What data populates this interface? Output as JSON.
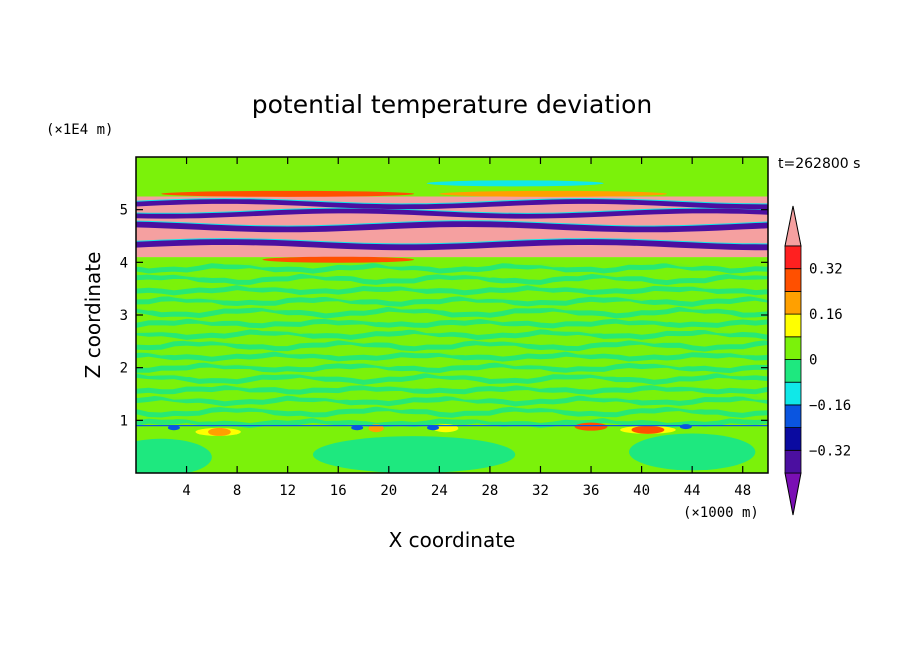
{
  "chart_data": {
    "type": "heatmap",
    "title": "potential temperature deviation",
    "xlabel": "X coordinate",
    "ylabel": "Z coordinate",
    "x_unit": "(×1000 m)",
    "y_unit": "(×1E4 m)",
    "time_label": "t=262800 s",
    "xlim": [
      0,
      50
    ],
    "ylim": [
      0,
      6
    ],
    "x_ticks": [
      4,
      8,
      12,
      16,
      20,
      24,
      28,
      32,
      36,
      40,
      44,
      48
    ],
    "y_ticks": [
      1,
      2,
      3,
      4,
      5
    ],
    "colorbar": {
      "levels": [
        -0.4,
        -0.32,
        -0.24,
        -0.16,
        -0.08,
        0,
        0.08,
        0.16,
        0.24,
        0.32,
        0.4
      ],
      "labeled_levels": [
        0.32,
        0.16,
        0,
        -0.16,
        -0.32
      ],
      "colors": [
        "#7a0fb4",
        "#4b0fa0",
        "#0a0aa0",
        "#0a55e0",
        "#10e8e8",
        "#1ee87f",
        "#7bf20a",
        "#ffff00",
        "#ffa000",
        "#ff5000",
        "#ff2020",
        "#f5a0a0"
      ],
      "extend": "both"
    },
    "fields": [
      {
        "z_range": [
          0,
          0.9
        ],
        "x_range": [
          0,
          50
        ],
        "value": 0.0
      },
      {
        "z_range": [
          0.9,
          4.1
        ],
        "x_range": [
          0,
          50
        ],
        "value": 0.04
      },
      {
        "z_range": [
          4.1,
          5.25
        ],
        "x_range": [
          0,
          50
        ],
        "value": 0.44
      },
      {
        "z_range": [
          5.25,
          6.0
        ],
        "x_range": [
          0,
          50
        ],
        "value": 0.04
      }
    ],
    "bands": [
      {
        "value": -0.4,
        "x": [
          0,
          50
        ],
        "z": [
          4.28,
          4.4
        ]
      },
      {
        "value": -0.4,
        "x": [
          0,
          50
        ],
        "z": [
          4.62,
          4.74
        ]
      },
      {
        "value": -0.4,
        "x": [
          0,
          50
        ],
        "z": [
          4.88,
          4.98
        ]
      },
      {
        "value": -0.4,
        "x": [
          0,
          50
        ],
        "z": [
          5.06,
          5.16
        ]
      }
    ]
  }
}
